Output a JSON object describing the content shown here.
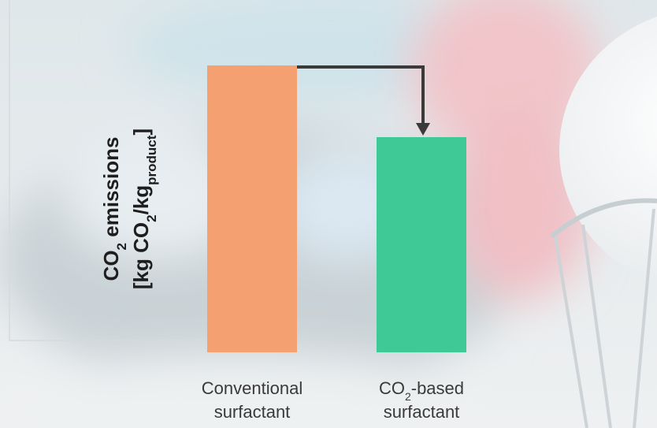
{
  "chart_data": {
    "type": "bar",
    "ylabel": [
      [
        {
          "text": "CO"
        },
        {
          "text": "2",
          "sub": true
        },
        {
          "text": " emissions"
        }
      ],
      [
        {
          "text": "[kg CO"
        },
        {
          "text": "2",
          "sub": true
        },
        {
          "text": "/kg"
        },
        {
          "text": "product",
          "sub": true
        },
        {
          "text": "]"
        }
      ]
    ],
    "categories": [
      [
        [
          {
            "text": "Conventional"
          }
        ],
        [
          {
            "text": "surfactant"
          }
        ]
      ],
      [
        [
          {
            "text": "CO"
          },
          {
            "text": "2",
            "sub": true
          },
          {
            "text": "-based"
          }
        ],
        [
          {
            "text": "surfactant"
          }
        ]
      ]
    ],
    "values": [
      100,
      75
    ],
    "colors": [
      "#f4a071",
      "#3ec996"
    ],
    "ylim": [
      0,
      100
    ]
  }
}
